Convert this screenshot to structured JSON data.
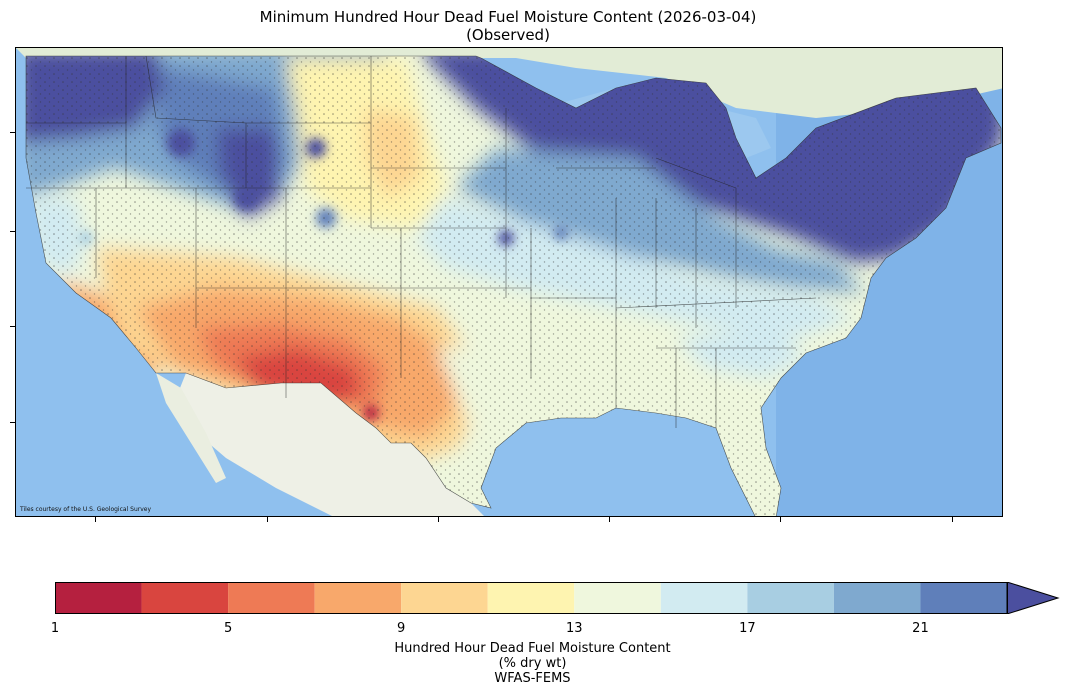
{
  "title": {
    "line1": "Minimum Hundred Hour Dead Fuel Moisture Content (2026-03-04)",
    "line2": "(Observed)"
  },
  "map": {
    "basemap_credit": "Tiles courtesy of the U.S. Geological Survey",
    "ocean_color": "#8fc0ee",
    "land_color": "#eef0e6"
  },
  "colorbar": {
    "label_line1": "Hundred Hour Dead Fuel Moisture Content",
    "label_line2": "(% dry wt)",
    "label_line3": "WFAS-FEMS",
    "ticks": [
      "1",
      "5",
      "9",
      "13",
      "17",
      "21"
    ],
    "bins": [
      {
        "from": 1,
        "to": 3,
        "color": "#b5203f"
      },
      {
        "from": 3,
        "to": 5,
        "color": "#d9453f"
      },
      {
        "from": 5,
        "to": 7,
        "color": "#ee7a55"
      },
      {
        "from": 7,
        "to": 9,
        "color": "#f8a86b"
      },
      {
        "from": 9,
        "to": 11,
        "color": "#fdd692"
      },
      {
        "from": 11,
        "to": 13,
        "color": "#fef4b0"
      },
      {
        "from": 13,
        "to": 15,
        "color": "#eff7dd"
      },
      {
        "from": 15,
        "to": 17,
        "color": "#d2ebf1"
      },
      {
        "from": 17,
        "to": 19,
        "color": "#a8cee2"
      },
      {
        "from": 19,
        "to": 21,
        "color": "#7fa9cf"
      },
      {
        "from": 21,
        "to": 23,
        "color": "#5f7fba"
      }
    ],
    "extend_color": "#4b4f9f",
    "range": [
      1,
      23
    ]
  }
}
